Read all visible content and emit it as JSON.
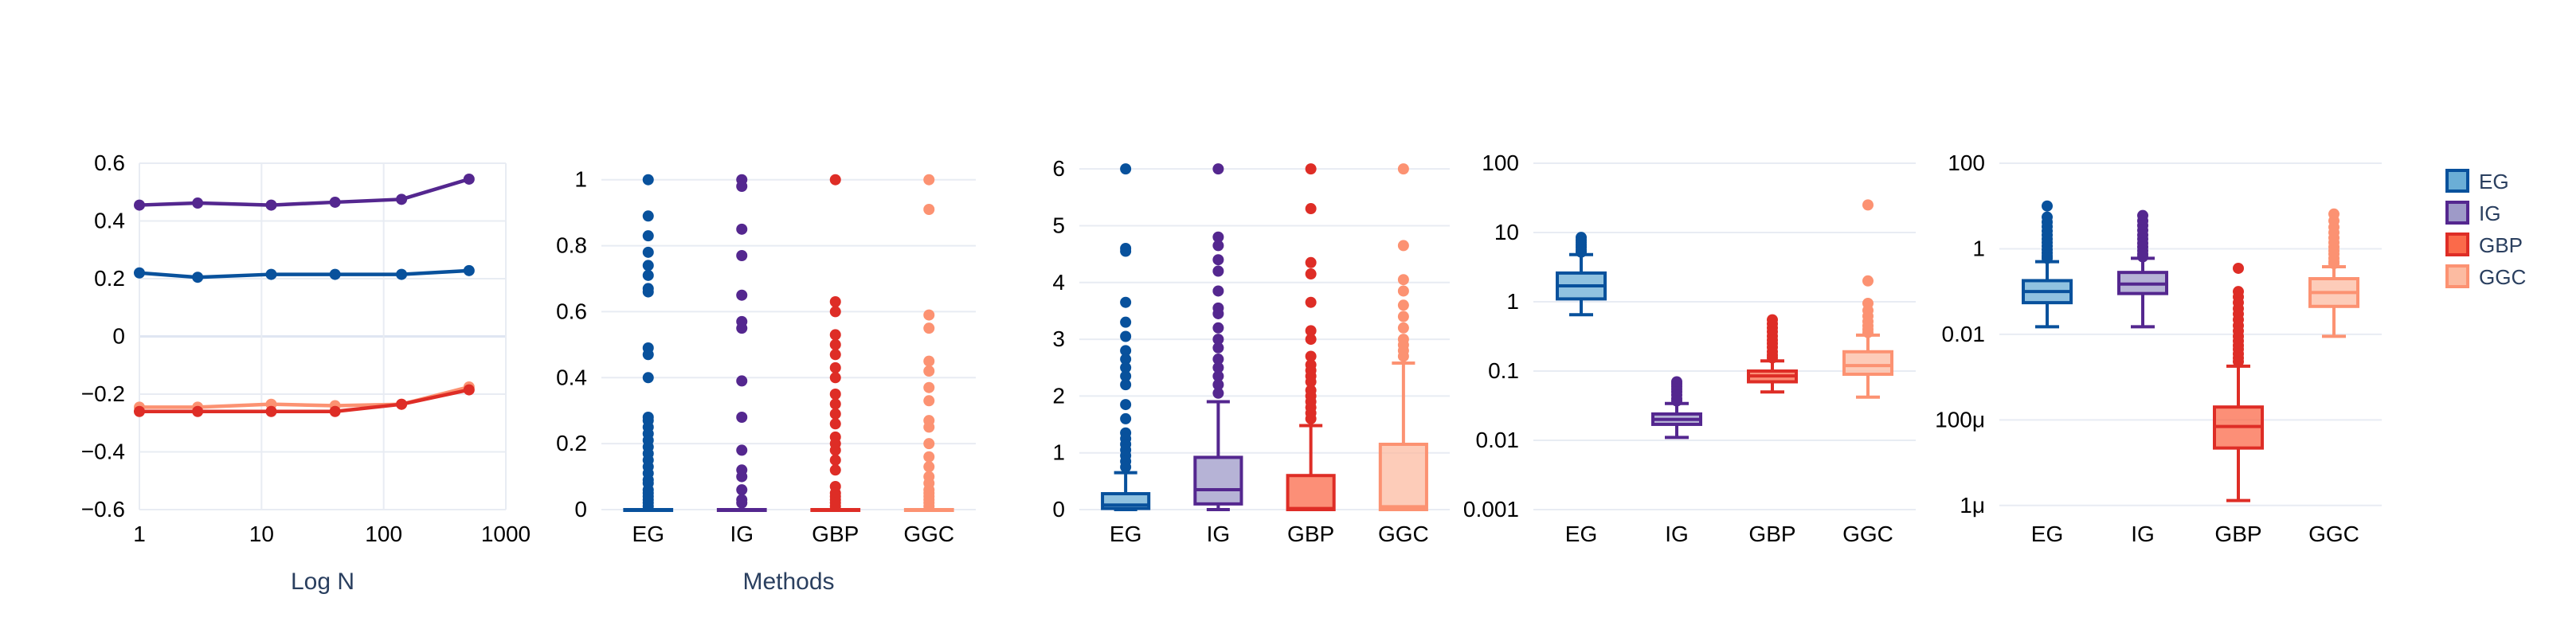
{
  "series_colors": {
    "EG": {
      "line": "#08519c",
      "fill": "#6baed6"
    },
    "IG": {
      "line": "#54278f",
      "fill": "#9e9ac8"
    },
    "GBP": {
      "line": "#de2d26",
      "fill": "#fb6a4a"
    },
    "GGC": {
      "line": "#fc9272",
      "fill": "#fcbba1"
    }
  },
  "legend": {
    "position": "top-right",
    "items": [
      "EG",
      "IG",
      "GBP",
      "GGC"
    ]
  },
  "chart_data": [
    {
      "type": "line",
      "xscale": "log",
      "xlabel": "Log N",
      "ylabel": "",
      "xlim": [
        1,
        1000
      ],
      "ylim": [
        -0.6,
        0.6
      ],
      "x_ticks": [
        "1",
        "10",
        "100",
        "1000"
      ],
      "y_ticks": [
        "0.6",
        "0.4",
        "0.2",
        "0",
        "−0.2",
        "−0.4",
        "−0.6"
      ],
      "x": [
        1,
        3,
        12,
        40,
        140,
        500
      ],
      "series": [
        {
          "name": "IG",
          "values": [
            0.455,
            0.462,
            0.455,
            0.465,
            0.475,
            0.545
          ]
        },
        {
          "name": "EG",
          "values": [
            0.22,
            0.205,
            0.215,
            0.215,
            0.215,
            0.228
          ]
        },
        {
          "name": "GGC",
          "values": [
            -0.245,
            -0.245,
            -0.235,
            -0.24,
            -0.235,
            -0.175
          ]
        },
        {
          "name": "GBP",
          "values": [
            -0.26,
            -0.26,
            -0.26,
            -0.26,
            -0.235,
            -0.185
          ]
        }
      ],
      "grid": true
    },
    {
      "type": "box",
      "yscale": "linear",
      "xlabel": "Methods",
      "ylim": [
        0,
        1.05
      ],
      "categories": [
        "EG",
        "IG",
        "GBP",
        "GGC"
      ],
      "y_ticks": [
        "1",
        "0.8",
        "0.6",
        "0.4",
        "0.2",
        "0"
      ],
      "boxes": [
        {
          "name": "EG",
          "min": 0,
          "q1": 0,
          "median": 0,
          "q3": 0,
          "max": 0,
          "outliers": [
            1.0,
            0.89,
            0.83,
            0.78,
            0.74,
            0.71,
            0.67,
            0.66,
            0.49,
            0.47,
            0.4,
            0.28,
            0.27,
            0.25,
            0.23,
            0.21,
            0.19,
            0.17,
            0.15,
            0.13,
            0.11,
            0.09,
            0.08,
            0.06,
            0.05,
            0.04,
            0.03,
            0.02,
            0.01
          ]
        },
        {
          "name": "IG",
          "min": 0,
          "q1": 0,
          "median": 0,
          "q3": 0,
          "max": 0,
          "outliers": [
            1.0,
            0.98,
            0.85,
            0.77,
            0.65,
            0.57,
            0.55,
            0.39,
            0.28,
            0.18,
            0.12,
            0.1,
            0.06,
            0.03,
            0.02
          ]
        },
        {
          "name": "GBP",
          "min": 0,
          "q1": 0,
          "median": 0,
          "q3": 0,
          "max": 0,
          "outliers": [
            1.0,
            0.63,
            0.6,
            0.53,
            0.5,
            0.47,
            0.43,
            0.4,
            0.35,
            0.32,
            0.29,
            0.26,
            0.22,
            0.2,
            0.18,
            0.15,
            0.12,
            0.07,
            0.05,
            0.04,
            0.03,
            0.02,
            0.01
          ]
        },
        {
          "name": "GGC",
          "min": 0,
          "q1": 0,
          "median": 0,
          "q3": 0,
          "max": 0,
          "outliers": [
            1.0,
            0.91,
            0.59,
            0.55,
            0.45,
            0.42,
            0.37,
            0.33,
            0.27,
            0.25,
            0.2,
            0.16,
            0.13,
            0.1,
            0.08,
            0.06,
            0.05,
            0.04,
            0.03,
            0.02,
            0.01
          ]
        }
      ]
    },
    {
      "type": "box",
      "yscale": "linear",
      "xlabel": "",
      "ylim": [
        0,
        6.1
      ],
      "categories": [
        "EG",
        "IG",
        "GBP",
        "GGC"
      ],
      "y_ticks": [
        "6",
        "5",
        "4",
        "3",
        "2",
        "1",
        "0"
      ],
      "boxes": [
        {
          "name": "EG",
          "min": 0,
          "q1": 0.02,
          "median": 0.08,
          "q3": 0.28,
          "max": 0.65,
          "outliers": [
            6.0,
            4.6,
            4.55,
            3.65,
            3.3,
            3.05,
            2.8,
            2.65,
            2.5,
            2.35,
            2.2,
            1.85,
            1.6,
            1.35,
            1.25,
            1.15,
            1.05,
            0.95,
            0.85,
            0.75
          ]
        },
        {
          "name": "IG",
          "min": 0,
          "q1": 0.1,
          "median": 0.35,
          "q3": 0.92,
          "max": 1.9,
          "outliers": [
            6.0,
            4.8,
            4.65,
            4.4,
            4.2,
            3.85,
            3.55,
            3.45,
            3.2,
            3.0,
            2.85,
            2.65,
            2.5,
            2.35,
            2.2,
            2.05
          ]
        },
        {
          "name": "GBP",
          "min": 0,
          "q1": 0,
          "median": 0.02,
          "q3": 0.6,
          "max": 1.48,
          "outliers": [
            6.0,
            5.3,
            4.35,
            4.15,
            3.65,
            3.15,
            3.0,
            2.7,
            2.55,
            2.45,
            2.35,
            2.25,
            2.1,
            2.0,
            1.9,
            1.8,
            1.7,
            1.6
          ]
        },
        {
          "name": "GGC",
          "min": 0,
          "q1": 0,
          "median": 0.05,
          "q3": 1.15,
          "max": 2.58,
          "outliers": [
            6.0,
            4.65,
            4.05,
            3.85,
            3.6,
            3.4,
            3.2,
            3.0,
            2.9,
            2.8,
            2.7
          ]
        }
      ]
    },
    {
      "type": "box",
      "yscale": "log",
      "xlabel": "",
      "ylim": [
        0.001,
        100
      ],
      "categories": [
        "EG",
        "IG",
        "GBP",
        "GGC"
      ],
      "y_ticks": [
        "100",
        "10",
        "1",
        "0.1",
        "0.01",
        "0.001"
      ],
      "boxes": [
        {
          "name": "EG",
          "min": 0.65,
          "q1": 1.1,
          "median": 1.7,
          "q3": 2.6,
          "max": 4.8,
          "outliers": [
            8.5,
            7.8,
            7.2,
            6.6,
            6.1,
            5.6,
            5.2
          ]
        },
        {
          "name": "IG",
          "min": 0.011,
          "q1": 0.017,
          "median": 0.02,
          "q3": 0.024,
          "max": 0.034,
          "outliers": [
            0.07,
            0.065,
            0.06,
            0.055,
            0.05,
            0.045,
            0.04,
            0.037
          ]
        },
        {
          "name": "GBP",
          "min": 0.05,
          "q1": 0.07,
          "median": 0.085,
          "q3": 0.1,
          "max": 0.14,
          "outliers": [
            0.55,
            0.48,
            0.42,
            0.37,
            0.32,
            0.28,
            0.25,
            0.22,
            0.19,
            0.17,
            0.155
          ]
        },
        {
          "name": "GGC",
          "min": 0.042,
          "q1": 0.09,
          "median": 0.12,
          "q3": 0.19,
          "max": 0.33,
          "outliers": [
            25,
            2.0,
            0.95,
            0.75,
            0.62,
            0.52,
            0.45,
            0.4,
            0.36
          ]
        }
      ]
    },
    {
      "type": "box",
      "yscale": "log",
      "xlabel": "",
      "ylim": [
        8e-07,
        100
      ],
      "categories": [
        "EG",
        "IG",
        "GBP",
        "GGC"
      ],
      "y_ticks": [
        "100",
        "1",
        "0.01",
        "100μ",
        "1μ"
      ],
      "boxes": [
        {
          "name": "EG",
          "min": 0.015,
          "q1": 0.055,
          "median": 0.1,
          "q3": 0.18,
          "max": 0.5,
          "outliers": [
            10,
            5.5,
            4.2,
            3.3,
            2.6,
            2.1,
            1.7,
            1.4,
            1.15,
            0.95,
            0.8,
            0.68,
            0.6
          ]
        },
        {
          "name": "IG",
          "min": 0.015,
          "q1": 0.09,
          "median": 0.15,
          "q3": 0.28,
          "max": 0.6,
          "outliers": [
            6.0,
            4.5,
            3.5,
            2.7,
            2.1,
            1.7,
            1.35,
            1.1,
            0.9,
            0.75,
            0.65
          ]
        },
        {
          "name": "GBP",
          "min": 1.3e-06,
          "q1": 2.2e-05,
          "median": 7e-05,
          "q3": 0.0002,
          "max": 0.0018,
          "outliers": [
            0.35,
            0.1,
            0.075,
            0.055,
            0.04,
            0.03,
            0.022,
            0.016,
            0.012,
            0.009,
            0.007,
            0.0055,
            0.0045,
            0.0035,
            0.0028,
            0.0023
          ]
        },
        {
          "name": "GGC",
          "min": 0.009,
          "q1": 0.045,
          "median": 0.095,
          "q3": 0.2,
          "max": 0.38,
          "outliers": [
            6.5,
            4.5,
            3.2,
            2.4,
            1.8,
            1.4,
            1.1,
            0.9,
            0.75,
            0.6,
            0.5,
            0.45
          ]
        }
      ]
    }
  ]
}
